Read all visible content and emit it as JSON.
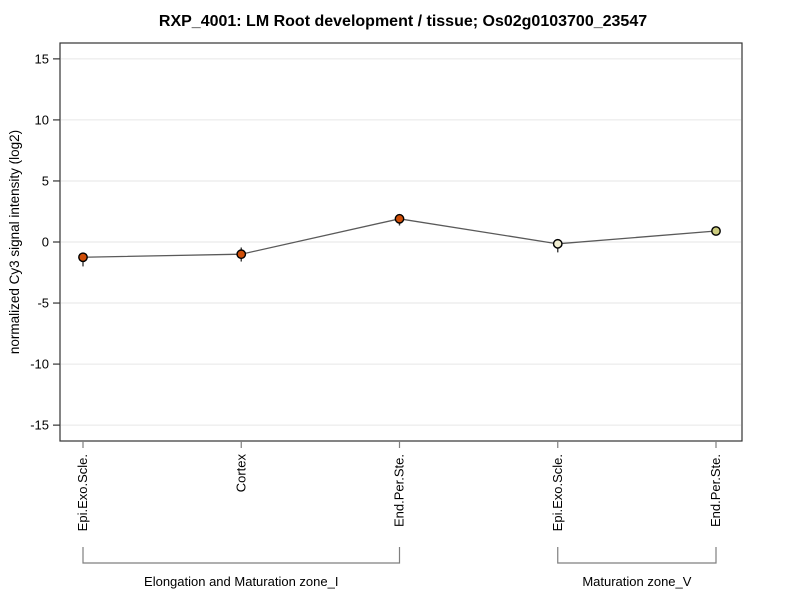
{
  "chart_data": {
    "type": "line",
    "title": "RXP_4001: LM Root development / tissue; Os02g0103700_23547",
    "ylabel": "normalized Cy3 signal intensity (log2)",
    "xlabel": "",
    "ylim": [
      -16.3,
      16.3
    ],
    "yticks": [
      15,
      10,
      5,
      0,
      -5,
      -10,
      -15
    ],
    "grid": {
      "horizontal": true,
      "vertical": false
    },
    "legend": "none",
    "categories": [
      "Epi.Exo.Scle.",
      "Cortex",
      "End.Per.Ste.",
      "Epi.Exo.Scle.",
      "End.Per.Ste."
    ],
    "series": [
      {
        "name": "normalized Cy3 signal intensity (log2)",
        "values": [
          -1.25,
          -1.0,
          1.9,
          -0.15,
          0.9
        ],
        "errors_low": [
          -2.0,
          -1.6,
          1.35,
          -0.85,
          0.65
        ],
        "errors_high": [
          -0.9,
          -0.45,
          2.1,
          0.15,
          1.05
        ],
        "marker_colors": [
          "#cf4e08",
          "#cf4e08",
          "#cf4e08",
          "#f1eed2",
          "#cbcb7e"
        ]
      }
    ],
    "groups": [
      {
        "label": "Elongation and Maturation zone_I",
        "from": 0,
        "to": 2
      },
      {
        "label": "Maturation zone_V",
        "from": 3,
        "to": 4
      }
    ],
    "colors": {
      "line": "#5a5a5a",
      "marker_stroke": "#000000",
      "error_bar": "#3a3a3a",
      "grid": "#e6e6e6",
      "axis": "#333333",
      "x_tick": "#7f7f7f",
      "bracket": "#7f7f7f",
      "background": "#ffffff"
    }
  }
}
